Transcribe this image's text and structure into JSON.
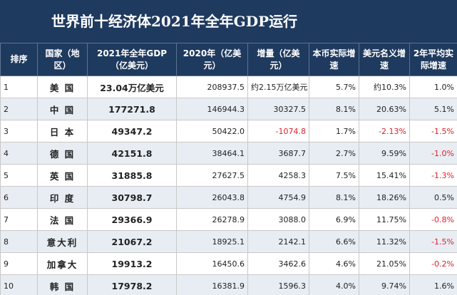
{
  "title": "世界前十经济体2021年全年GDP运行",
  "columns": [
    "排序",
    "国家（地区）",
    "2021年全年GDP（亿美元）",
    "2020年（亿美元）",
    "增量（亿美元）",
    "本币实际增速",
    "美元名义增速",
    "2年平均实际增速"
  ],
  "rows": [
    {
      "rank": "1",
      "country": "美 国",
      "gdp2021": "23.04万亿美元",
      "gdp2020": "208937.5",
      "increment": "约2.15万亿美元",
      "local_growth": "5.7%",
      "usd_growth": "约10.3%",
      "avg2y": "1.0%"
    },
    {
      "rank": "2",
      "country": "中 国",
      "gdp2021": "177271.8",
      "gdp2020": "146944.3",
      "increment": "30327.5",
      "local_growth": "8.1%",
      "usd_growth": "20.63%",
      "avg2y": "5.1%"
    },
    {
      "rank": "3",
      "country": "日 本",
      "gdp2021": "49347.2",
      "gdp2020": "50422.0",
      "increment": "-1074.8",
      "local_growth": "1.7%",
      "usd_growth": "-2.13%",
      "avg2y": "-1.5%"
    },
    {
      "rank": "4",
      "country": "德 国",
      "gdp2021": "42151.8",
      "gdp2020": "38464.1",
      "increment": "3687.7",
      "local_growth": "2.7%",
      "usd_growth": "9.59%",
      "avg2y": "-1.0%"
    },
    {
      "rank": "5",
      "country": "英 国",
      "gdp2021": "31885.8",
      "gdp2020": "27627.5",
      "increment": "4258.3",
      "local_growth": "7.5%",
      "usd_growth": "15.41%",
      "avg2y": "-1.3%"
    },
    {
      "rank": "6",
      "country": "印 度",
      "gdp2021": "30798.7",
      "gdp2020": "26043.8",
      "increment": "4754.9",
      "local_growth": "8.1%",
      "usd_growth": "18.26%",
      "avg2y": "0.5%"
    },
    {
      "rank": "7",
      "country": "法 国",
      "gdp2021": "29366.9",
      "gdp2020": "26278.9",
      "increment": "3088.0",
      "local_growth": "6.9%",
      "usd_growth": "11.75%",
      "avg2y": "-0.8%"
    },
    {
      "rank": "8",
      "country": "意大利",
      "gdp2021": "21067.2",
      "gdp2020": "18925.1",
      "increment": "2142.1",
      "local_growth": "6.6%",
      "usd_growth": "11.32%",
      "avg2y": "-1.5%"
    },
    {
      "rank": "9",
      "country": "加拿大",
      "gdp2021": "19913.2",
      "gdp2020": "16450.6",
      "increment": "3462.6",
      "local_growth": "4.6%",
      "usd_growth": "21.05%",
      "avg2y": "-0.2%"
    },
    {
      "rank": "10",
      "country": "韩 国",
      "gdp2021": "17978.2",
      "gdp2020": "16381.9",
      "increment": "1596.3",
      "local_growth": "4.0%",
      "usd_growth": "9.74%",
      "avg2y": "1.6%"
    }
  ],
  "colors": {
    "header_bg": "#1f3a5f",
    "header_text": "#ffffff",
    "row_alt_bg": "#e8edf3",
    "negative": "#e0202a"
  }
}
